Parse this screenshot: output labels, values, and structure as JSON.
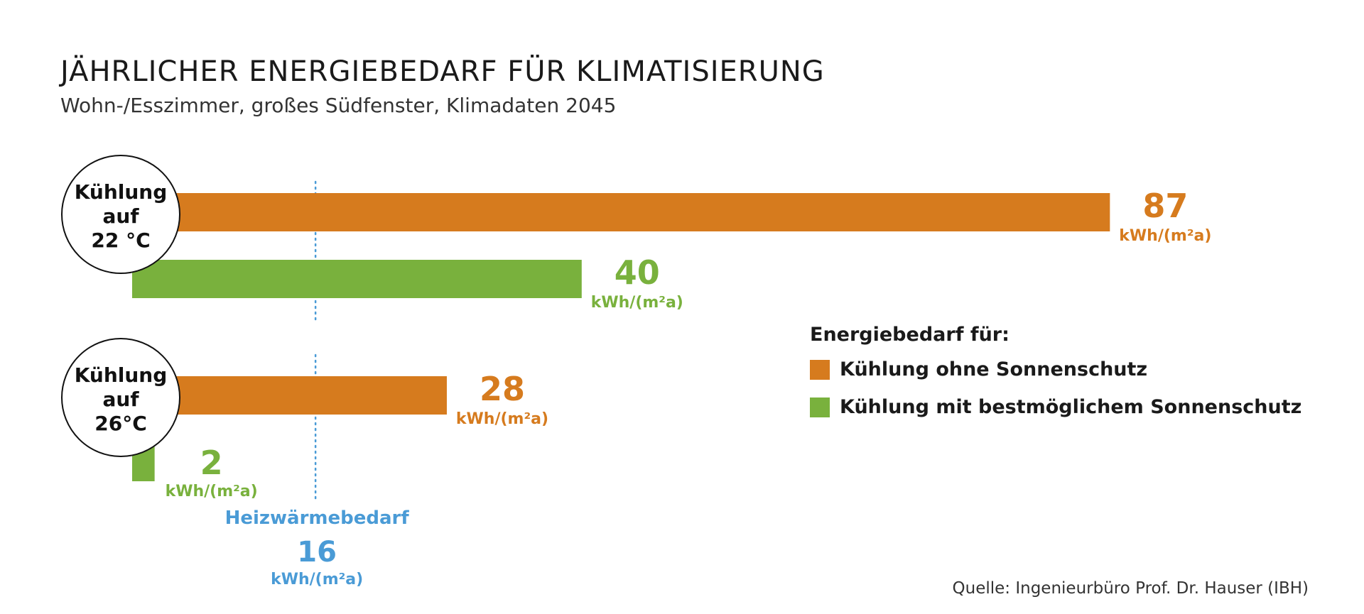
{
  "chart_data": {
    "type": "bar",
    "orientation": "horizontal",
    "title": "JÄHRLICHER ENERGIEBEDARF FÜR KLIMATISIERUNG",
    "subtitle": "Wohn-/Esszimmer, großes Südfenster, Klimadaten 2045",
    "unit": "kWh/(m²a)",
    "categories": [
      {
        "label_lines": [
          "Kühlung",
          "auf",
          "22 °C"
        ]
      },
      {
        "label_lines": [
          "Kühlung",
          "auf",
          "26°C"
        ]
      }
    ],
    "series": [
      {
        "name": "Kühlung ohne Sonnenschutz",
        "color": "#d67b1e",
        "values": [
          87,
          28
        ]
      },
      {
        "name": "Kühlung mit bestmöglichem Sonnenschutz",
        "color": "#79b13d",
        "values": [
          40,
          2
        ]
      }
    ],
    "reference_line": {
      "label": "Heizwärmebedarf",
      "value": 16,
      "color": "#4a9bd6"
    },
    "legend": {
      "title": "Energiebedarf für:",
      "position": "right"
    },
    "xlim": [
      0,
      100
    ],
    "grid": false
  },
  "source": "Quelle: Ingenieurbüro Prof. Dr. Hauser (IBH)"
}
